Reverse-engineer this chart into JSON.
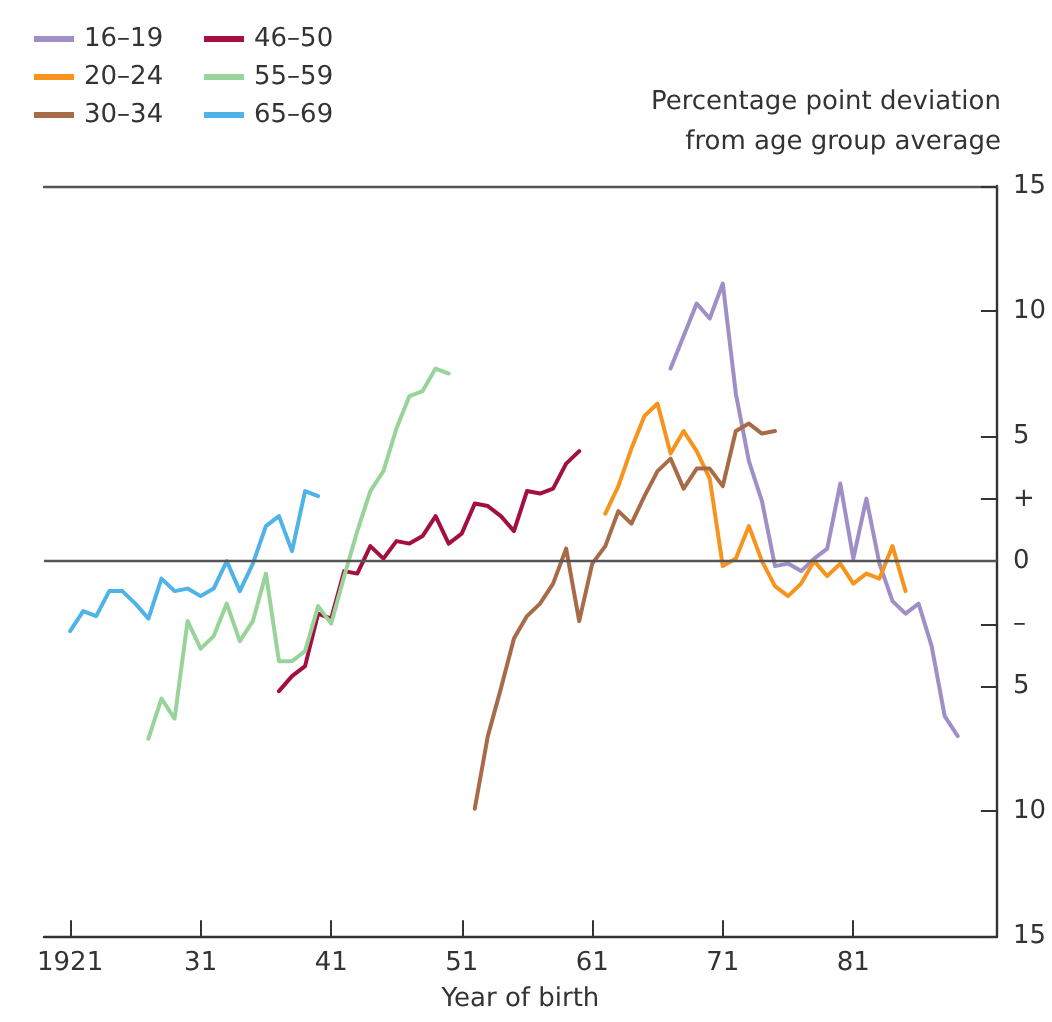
{
  "chart_data": {
    "type": "line",
    "xlabel": "Year of birth",
    "ylabel": "Percentage point deviation\nfrom age group average",
    "xlim": [
      1919,
      1992
    ],
    "xticks": [
      {
        "value": 1921,
        "label": "1921"
      },
      {
        "value": 1931,
        "label": "31"
      },
      {
        "value": 1941,
        "label": "41"
      },
      {
        "value": 1951,
        "label": "51"
      },
      {
        "value": 1961,
        "label": "61"
      },
      {
        "value": 1971,
        "label": "71"
      },
      {
        "value": 1981,
        "label": "81"
      }
    ],
    "ylim": [
      -15,
      15
    ],
    "yticks": [
      {
        "value": -15,
        "label": "15"
      },
      {
        "value": -10,
        "label": "10"
      },
      {
        "value": -5,
        "label": "5"
      },
      {
        "value": -2.5,
        "label": "–"
      },
      0,
      {
        "value": 2.5,
        "label": "+"
      },
      5,
      10,
      15
    ],
    "grid": false,
    "legend": "top left",
    "marker": "none",
    "line_style": "solid",
    "ref_lines": [
      {
        "axis": "y",
        "value": 0,
        "color": "#555555"
      }
    ],
    "series": [
      {
        "name": "16–19",
        "color": "#9e8fc6",
        "x": [
          1967,
          1968,
          1969,
          1970,
          1971,
          1972,
          1973,
          1974,
          1975,
          1976,
          1977,
          1978,
          1979,
          1980,
          1981,
          1982,
          1983,
          1984,
          1985,
          1986,
          1987,
          1988,
          1989
        ],
        "values": [
          7.7,
          9.0,
          10.3,
          9.7,
          11.1,
          6.7,
          4.0,
          2.4,
          -0.2,
          -0.1,
          -0.4,
          0.1,
          0.5,
          3.1,
          0.1,
          2.5,
          -0.1,
          -1.6,
          -2.1,
          -1.7,
          -3.4,
          -6.2,
          -7.0
        ]
      },
      {
        "name": "20–24",
        "color": "#f7941d",
        "x": [
          1962,
          1963,
          1964,
          1965,
          1966,
          1967,
          1968,
          1969,
          1970,
          1971,
          1972,
          1973,
          1974,
          1975,
          1976,
          1977,
          1978,
          1979,
          1980,
          1981,
          1982,
          1983,
          1984,
          1985
        ],
        "values": [
          1.9,
          3.0,
          4.5,
          5.8,
          6.3,
          4.3,
          5.2,
          4.4,
          3.3,
          -0.2,
          0.1,
          1.4,
          0.0,
          -1.0,
          -1.4,
          -0.9,
          0.0,
          -0.6,
          -0.1,
          -0.9,
          -0.5,
          -0.7,
          0.6,
          -1.2
        ]
      },
      {
        "name": "30–34",
        "color": "#a86b47",
        "x": [
          1952,
          1953,
          1954,
          1955,
          1956,
          1957,
          1958,
          1959,
          1960,
          1961,
          1962,
          1963,
          1964,
          1965,
          1966,
          1967,
          1968,
          1969,
          1970,
          1971,
          1972,
          1973,
          1974,
          1975
        ],
        "values": [
          -9.9,
          -7.0,
          -5.1,
          -3.1,
          -2.2,
          -1.7,
          -0.9,
          0.5,
          -2.4,
          -0.1,
          0.6,
          2.0,
          1.5,
          2.6,
          3.6,
          4.1,
          2.9,
          3.7,
          3.7,
          3.0,
          5.2,
          5.5,
          5.1,
          5.2
        ]
      },
      {
        "name": "46–50",
        "color": "#a50f3f",
        "x": [
          1937,
          1938,
          1939,
          1940,
          1941,
          1942,
          1943,
          1944,
          1945,
          1946,
          1947,
          1948,
          1949,
          1950,
          1951,
          1952,
          1953,
          1954,
          1955,
          1956,
          1957,
          1958,
          1959,
          1960
        ],
        "values": [
          -5.2,
          -4.6,
          -4.2,
          -2.1,
          -2.3,
          -0.4,
          -0.5,
          0.6,
          0.1,
          0.8,
          0.7,
          1.0,
          1.8,
          0.7,
          1.1,
          2.3,
          2.2,
          1.8,
          1.2,
          2.8,
          2.7,
          2.9,
          3.9,
          4.4
        ]
      },
      {
        "name": "55–59",
        "color": "#98d49a",
        "x": [
          1927,
          1928,
          1929,
          1930,
          1931,
          1932,
          1933,
          1934,
          1935,
          1936,
          1937,
          1938,
          1939,
          1940,
          1941,
          1942,
          1943,
          1944,
          1945,
          1946,
          1947,
          1948,
          1949,
          1950
        ],
        "values": [
          -7.1,
          -5.5,
          -6.3,
          -2.4,
          -3.5,
          -3.0,
          -1.7,
          -3.2,
          -2.4,
          -0.5,
          -4.0,
          -4.0,
          -3.6,
          -1.8,
          -2.5,
          -0.6,
          1.2,
          2.8,
          3.6,
          5.3,
          6.6,
          6.8,
          7.7,
          7.5
        ]
      },
      {
        "name": "65–69",
        "color": "#4fb3e8",
        "x": [
          1921,
          1922,
          1923,
          1924,
          1925,
          1926,
          1927,
          1928,
          1929,
          1930,
          1931,
          1932,
          1933,
          1934,
          1935,
          1936,
          1937,
          1938,
          1939,
          1940
        ],
        "values": [
          -2.8,
          -2.0,
          -2.2,
          -1.2,
          -1.2,
          -1.7,
          -2.3,
          -0.7,
          -1.2,
          -1.1,
          -1.4,
          -1.1,
          0.0,
          -1.2,
          -0.1,
          1.4,
          1.8,
          0.4,
          2.8,
          2.6
        ]
      }
    ]
  }
}
